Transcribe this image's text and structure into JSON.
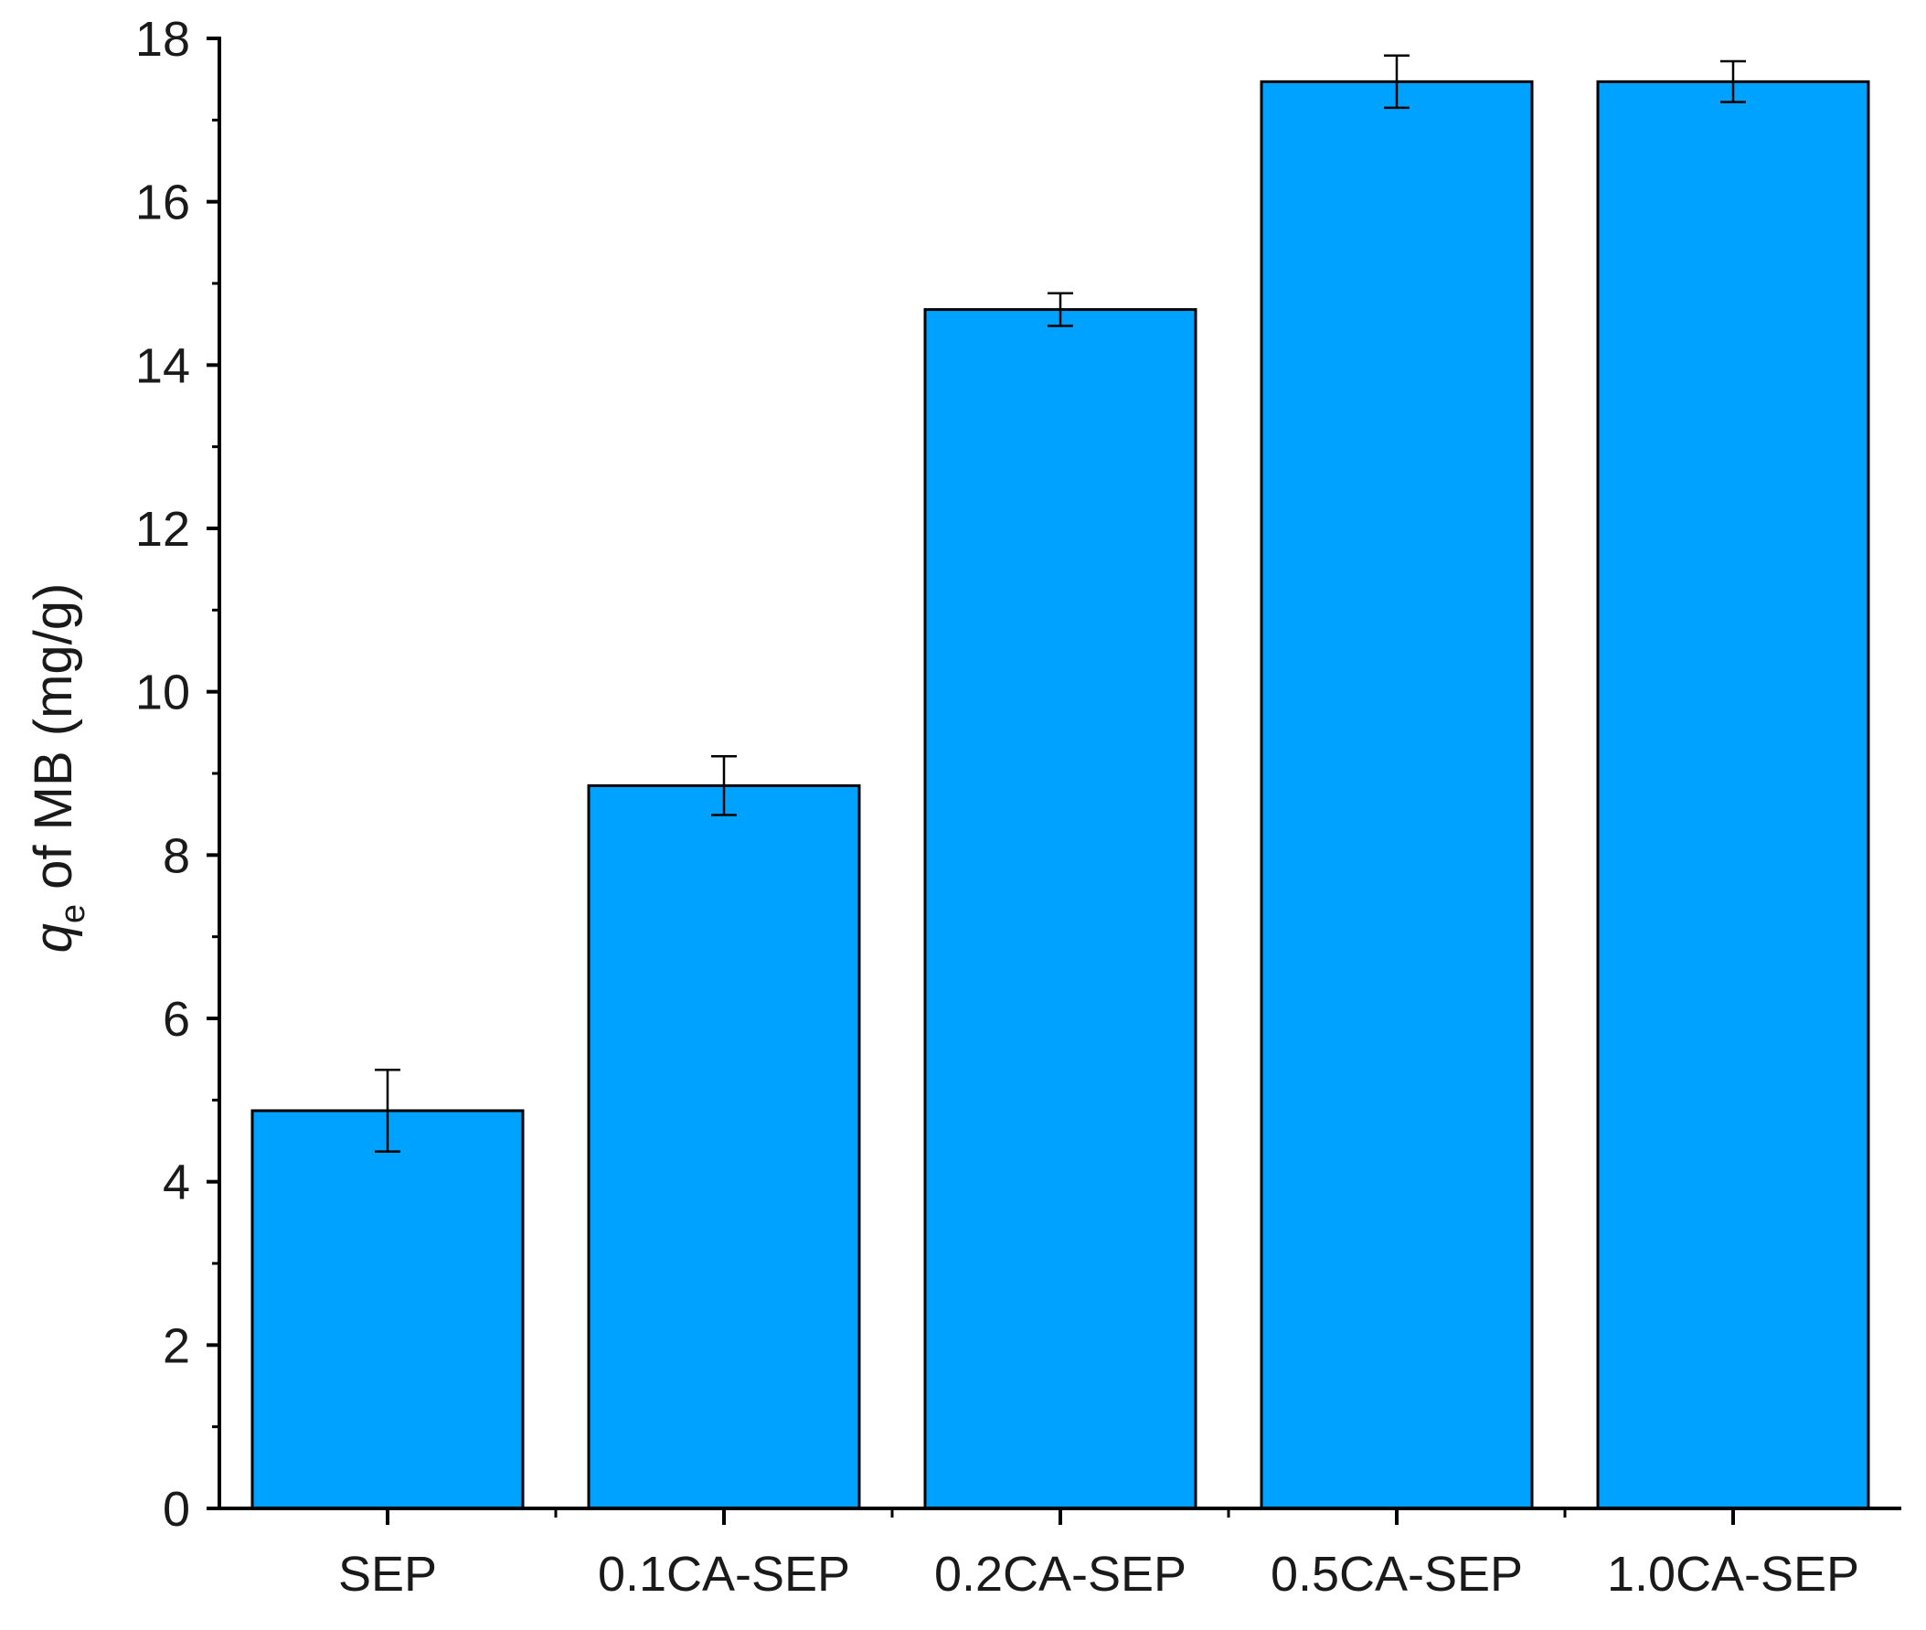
{
  "chart_data": {
    "type": "bar",
    "title": "",
    "xlabel": "",
    "ylabel": {
      "symbol": "q",
      "subscript": "e",
      "text": " of MB (mg/g)"
    },
    "ylim": [
      0,
      18
    ],
    "yticks": [
      0,
      2,
      4,
      6,
      8,
      10,
      12,
      14,
      16,
      18
    ],
    "yticks_minor_step": 1,
    "categories": [
      "SEP",
      "0.1CA-SEP",
      "0.2CA-SEP",
      "0.5CA-SEP",
      "1.0CA-SEP"
    ],
    "values": [
      4.87,
      8.85,
      14.68,
      17.47,
      17.47
    ],
    "errors": [
      0.5,
      0.36,
      0.2,
      0.32,
      0.25
    ],
    "grid": false,
    "legend": "none",
    "colors": {
      "bar_fill": "#00a2ff",
      "bar_edge": "#000000",
      "axis": "#000000"
    }
  }
}
